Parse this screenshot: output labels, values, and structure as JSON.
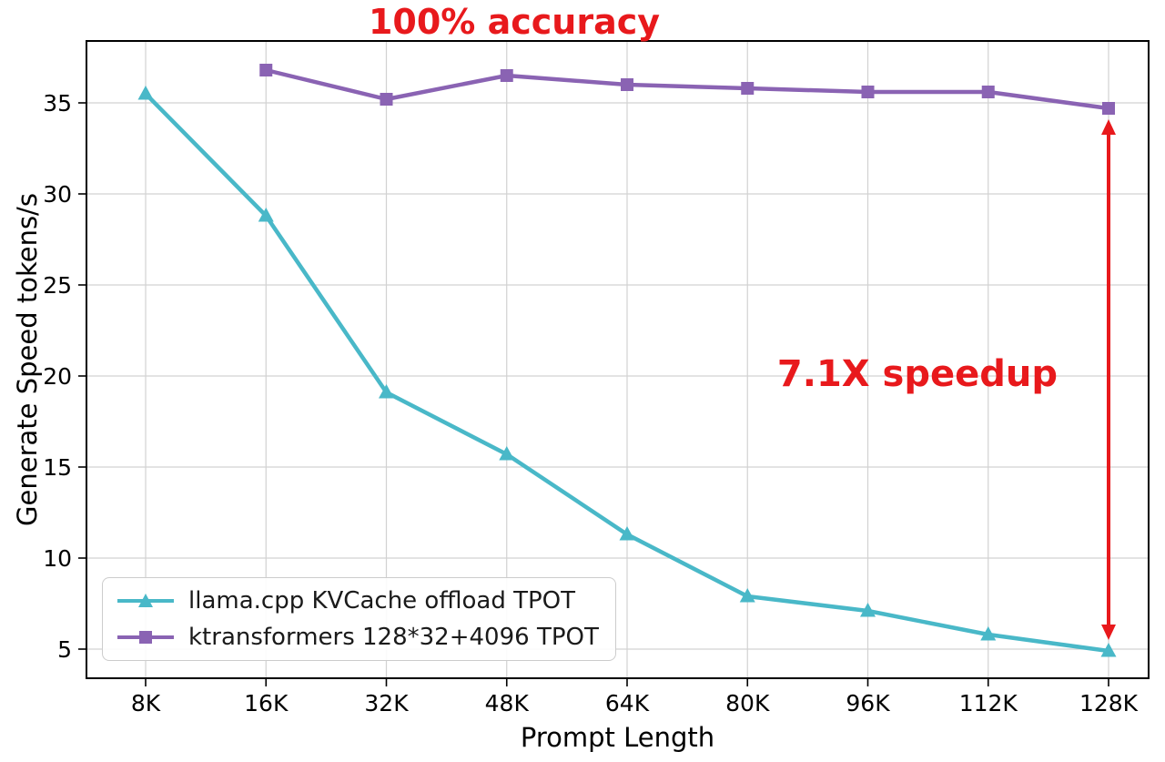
{
  "colors": {
    "red": "#e8191c",
    "cyan": "#49b8c8",
    "purple": "#8a63b3",
    "grid": "#d2d2d2",
    "axis": "#000000"
  },
  "chart_data": {
    "type": "line",
    "annotation_top": "100% accuracy",
    "annotation_speedup": "7.1X speedup",
    "xlabel": "Prompt Length",
    "ylabel": "Generate Speed tokens/s",
    "categories": [
      "8K",
      "16K",
      "32K",
      "48K",
      "64K",
      "80K",
      "96K",
      "112K",
      "128K"
    ],
    "y_ticks": [
      5,
      10,
      15,
      20,
      25,
      30,
      35
    ],
    "ylim": [
      3.4,
      38.4
    ],
    "grid": true,
    "legend_position": "lower left",
    "series": [
      {
        "name": "llama.cpp KVCache offload TPOT",
        "marker": "triangle",
        "color": "#49b8c8",
        "values": [
          35.5,
          28.8,
          19.1,
          15.7,
          11.3,
          7.9,
          7.1,
          5.8,
          4.9
        ]
      },
      {
        "name": "ktransformers 128*32+4096 TPOT",
        "marker": "square",
        "color": "#8a63b3",
        "values": [
          null,
          36.8,
          35.2,
          36.5,
          36.0,
          35.8,
          35.6,
          35.6,
          34.7
        ]
      }
    ],
    "arrow": {
      "x_category": "128K",
      "from": 34.7,
      "to": 4.9
    }
  }
}
